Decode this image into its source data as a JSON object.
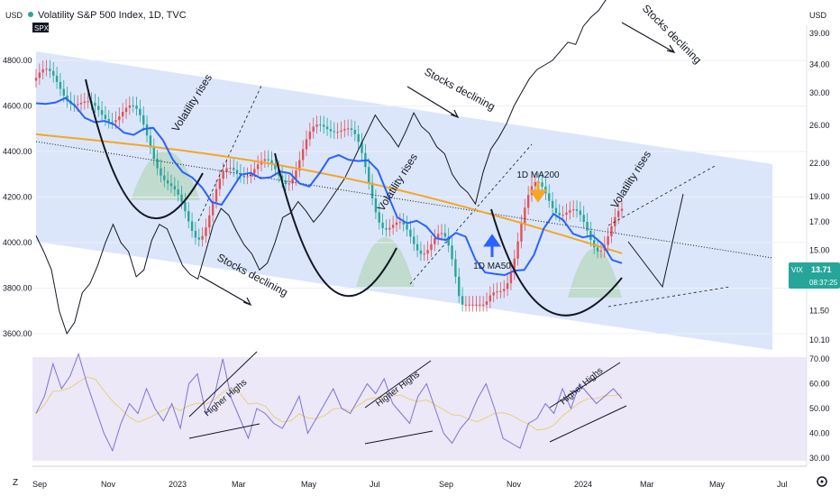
{
  "header": {
    "title": "Volatility S&P 500 Index, 1D, TVC",
    "left_currency": "USD",
    "right_currency": "USD",
    "compare_symbol": "SPX"
  },
  "price_tag": {
    "symbol": "VIX",
    "value": "13.71",
    "countdown": "08:37:25"
  },
  "footer": {
    "zoom_label": "Z",
    "settings_icon": "gear-icon"
  },
  "colors": {
    "band": "#dbe6fb",
    "ma50": "#2962ff",
    "ma200": "#f5a623",
    "candle_up": "#26a69a",
    "candle_down": "#e0525a",
    "rsi": "#7e72d6",
    "rsi_ma": "#e8d07a",
    "rsi_panel": "#ece8f8",
    "vix_tag": "#26a69a",
    "dome": "#bcd8c6"
  },
  "chart_data": [
    {
      "type": "line",
      "x_ticks": [
        "Sep",
        "Nov",
        "2023",
        "Mar",
        "May",
        "Jul",
        "Sep",
        "Nov",
        "2024",
        "Mar",
        "May",
        "Jul"
      ],
      "left_axis": {
        "label": "USD",
        "ticks": [
          4800.0,
          4600.0,
          4400.0,
          4200.0,
          4000.0,
          3800.0,
          3600.0
        ]
      },
      "right_axis": {
        "label": "USD",
        "scale": "log",
        "ticks": [
          39.0,
          34.0,
          30.0,
          26.0,
          22.0,
          19.0,
          17.0,
          15.0,
          13.0,
          11.5,
          10.1
        ]
      },
      "series": [
        {
          "name": "SPX",
          "values": [
            4030,
            3960,
            3880,
            3700,
            3600,
            3650,
            3780,
            3820,
            3900,
            4000,
            4080,
            4000,
            3960,
            3850,
            3880,
            4010,
            4080,
            4060,
            3980,
            3900,
            3860,
            3840,
            3960,
            4080,
            4150,
            4120,
            4050,
            3990,
            3950,
            3880,
            3910,
            4000,
            4110,
            4130,
            4180,
            4140,
            4090,
            4130,
            4180,
            4230,
            4280,
            4350,
            4420,
            4490,
            4560,
            4510,
            4470,
            4420,
            4490,
            4570,
            4510,
            4480,
            4420,
            4390,
            4300,
            4250,
            4220,
            4170,
            4310,
            4410,
            4460,
            4520,
            4600,
            4660,
            4720,
            4760,
            4780,
            4800,
            4840,
            4880,
            4870,
            4950,
            4990,
            5020,
            5070,
            5100,
            5150
          ]
        }
      ],
      "annotations": [
        "Volatility rises",
        "Stocks declining",
        "Volatility rises",
        "Stocks declining",
        "Volatility rises",
        "Stocks declining",
        "1D MA200",
        "1D MA50"
      ]
    },
    {
      "type": "line",
      "x_ticks": [
        "Sep",
        "Nov",
        "2023",
        "Mar",
        "May",
        "Jul",
        "Sep",
        "Nov",
        "2024",
        "Mar",
        "May",
        "Jul"
      ],
      "y_ticks": [
        70.0,
        60.0,
        50.0,
        40.0,
        30.0
      ],
      "series": [
        {
          "name": "RSI",
          "values": [
            48,
            55,
            68,
            58,
            63,
            72,
            60,
            50,
            40,
            33,
            44,
            52,
            48,
            58,
            50,
            45,
            52,
            42,
            60,
            64,
            48,
            55,
            70,
            54,
            46,
            38,
            50,
            48,
            44,
            42,
            48,
            55,
            40,
            46,
            52,
            58,
            50,
            48,
            54,
            60,
            56,
            62,
            52,
            48,
            44,
            55,
            60,
            50,
            40,
            36,
            42,
            46,
            54,
            60,
            50,
            38,
            36,
            34,
            44,
            46,
            52,
            48,
            58,
            50,
            60,
            56,
            52,
            55,
            58,
            54
          ]
        }
      ],
      "annotations": [
        "Higher Highs",
        "Higher Highs",
        "Higher Highs"
      ]
    }
  ]
}
